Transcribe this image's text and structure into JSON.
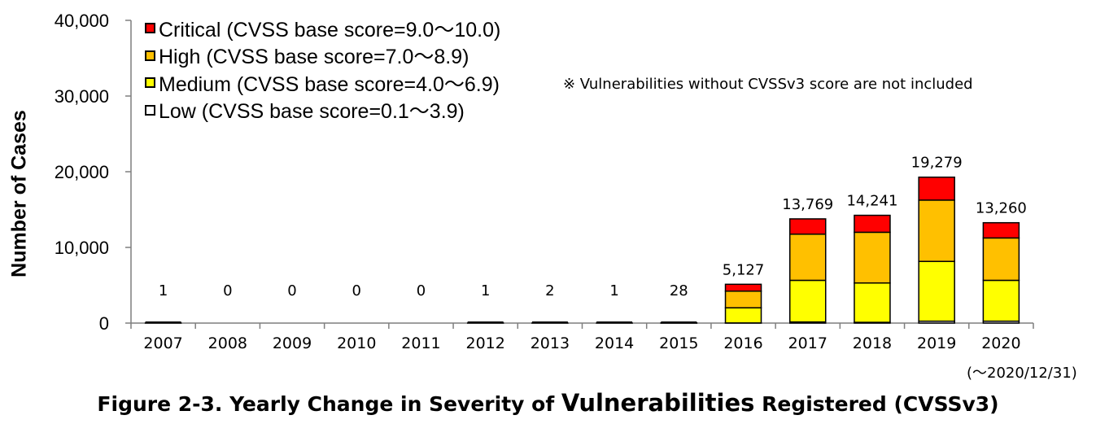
{
  "chart_data": {
    "type": "bar",
    "stacked": true,
    "title": "",
    "xlabel": "",
    "ylabel": "Number of Cases",
    "ylim": [
      0,
      40000
    ],
    "yticks": [
      "0",
      "10,000",
      "20,000",
      "30,000",
      "40,000"
    ],
    "ytick_values": [
      0,
      10000,
      20000,
      30000,
      40000
    ],
    "categories": [
      "2007",
      "2008",
      "2009",
      "2010",
      "2011",
      "2012",
      "2013",
      "2014",
      "2015",
      "2016",
      "2017",
      "2018",
      "2019",
      "2020"
    ],
    "totals": [
      1,
      0,
      0,
      0,
      0,
      1,
      2,
      1,
      28,
      5127,
      13769,
      14241,
      19279,
      13260
    ],
    "total_labels": [
      "1",
      "0",
      "0",
      "0",
      "0",
      "1",
      "2",
      "1",
      "28",
      "5,127",
      "13,769",
      "14,241",
      "19,279",
      "13,260"
    ],
    "series": [
      {
        "name": "Low (CVSS base score=0.1～3.9)",
        "color": "#ffffff",
        "values": [
          0,
          0,
          0,
          0,
          0,
          0,
          0,
          0,
          0,
          20,
          150,
          100,
          250,
          250
        ]
      },
      {
        "name": "Medium (CVSS base score=4.0～6.9)",
        "color": "#ffff00",
        "values": [
          1,
          0,
          0,
          0,
          0,
          1,
          2,
          1,
          15,
          2000,
          5500,
          5200,
          7900,
          5400
        ]
      },
      {
        "name": "High (CVSS base score=7.0～8.9)",
        "color": "#ffc000",
        "values": [
          0,
          0,
          0,
          0,
          0,
          0,
          0,
          0,
          11,
          2200,
          6100,
          6700,
          8100,
          5600
        ]
      },
      {
        "name": "Critical (CVSS base score=9.0～10.0)",
        "color": "#ff0000",
        "values": [
          0,
          0,
          0,
          0,
          0,
          0,
          0,
          0,
          2,
          907,
          2019,
          2241,
          3029,
          2010
        ]
      }
    ],
    "legend": {
      "placement": "top-left",
      "order": [
        "Critical (CVSS base score=9.0～10.0)",
        "High (CVSS base score=7.0～8.9)",
        "Medium (CVSS base score=4.0～6.9)",
        "Low (CVSS base score=0.1～3.9)"
      ]
    },
    "annotations": {
      "note": "※ Vulnerabilities without CVSSv3 score are not included",
      "last_category_note": "(～2020/12/31)"
    },
    "grid": false
  },
  "legend_labels": {
    "critical": "Critical (CVSS base score=9.0～10.0)",
    "high": "High (CVSS base score=7.0～8.9)",
    "medium": "Medium (CVSS base score=4.0～6.9)",
    "low": "Low (CVSS base score=0.1～3.9)"
  },
  "colors": {
    "critical": "#ff0000",
    "high": "#ffc000",
    "medium": "#ffff00",
    "low": "#ffffff"
  },
  "caption": {
    "prefix": "Figure 2-3. Yearly Change in Severity of ",
    "emphasis": "Vulnerabilities",
    "suffix": " Registered (CVSSv3)"
  }
}
